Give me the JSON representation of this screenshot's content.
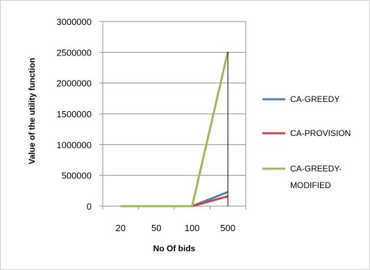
{
  "chart_data": {
    "type": "line",
    "categories": [
      "20",
      "50",
      "100",
      "500"
    ],
    "series": [
      {
        "name": "CA-GREEDY",
        "color": "#4a7ebb",
        "values": [
          0,
          0,
          0,
          230000
        ]
      },
      {
        "name": "CA-PROVISION",
        "color": "#be4b48",
        "values": [
          0,
          0,
          0,
          160000
        ]
      },
      {
        "name": "CA-GREEDY-MODIFIED",
        "color": "#98b954",
        "values": [
          0,
          0,
          0,
          2510000
        ]
      }
    ],
    "legend_lines": [
      [
        "CA-GREEDY"
      ],
      [
        "CA-PROVISION"
      ],
      [
        "CA-GREEDY-",
        "MODIFIED"
      ]
    ],
    "xlabel": "No Of bids",
    "ylabel": "Value of the utility function",
    "ylim": [
      0,
      3000000
    ],
    "yticks": [
      0,
      500000,
      1000000,
      1500000,
      2000000,
      2500000,
      3000000
    ],
    "grid": true,
    "legend_position": "right"
  }
}
